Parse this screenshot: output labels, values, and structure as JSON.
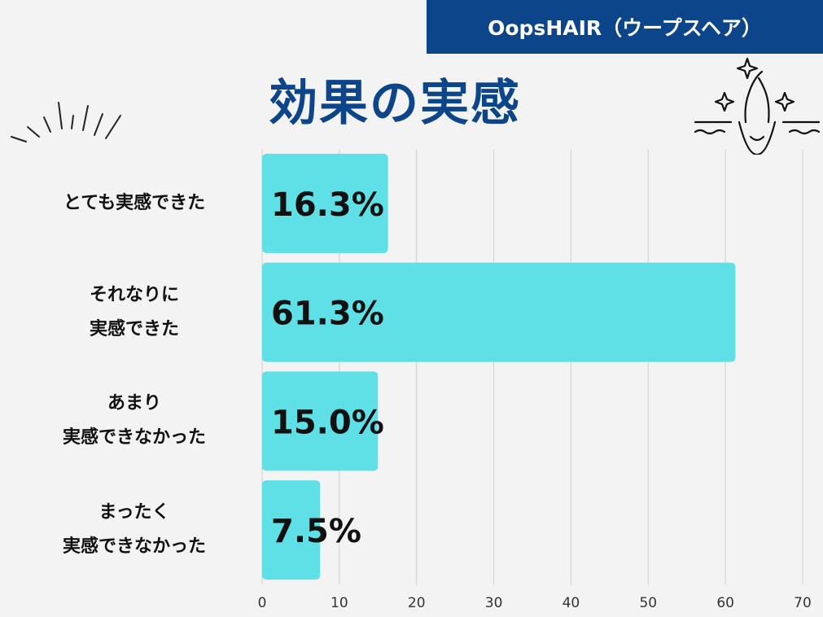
{
  "header": {
    "brand": "OopsHAIR（ウープスヘア）",
    "title": "効果の実感"
  },
  "colors": {
    "brand_bg": "#0c4589",
    "title": "#0c4589",
    "bar": "#5ee0e6",
    "grid": "#cfcfcf",
    "background": "#f3f3f3"
  },
  "icons": {
    "decoration": "sparkle-burst-icon",
    "hair": "hair-follicle-icon"
  },
  "chart_data": {
    "type": "bar",
    "orientation": "horizontal",
    "title": "効果の実感",
    "categories": [
      [
        "とても実感できた"
      ],
      [
        "それなりに",
        "実感できた"
      ],
      [
        "あまり",
        "実感できなかった"
      ],
      [
        "まったく",
        "実感できなかった"
      ]
    ],
    "values": [
      16.3,
      61.3,
      15.0,
      7.5
    ],
    "value_labels": [
      "16.3%",
      "61.3%",
      "15.0%",
      "7.5%"
    ],
    "xlim": [
      0,
      70
    ],
    "xticks": [
      0,
      10,
      20,
      30,
      40,
      50,
      60,
      70
    ],
    "xlabel": "",
    "ylabel": "",
    "grid": true
  }
}
